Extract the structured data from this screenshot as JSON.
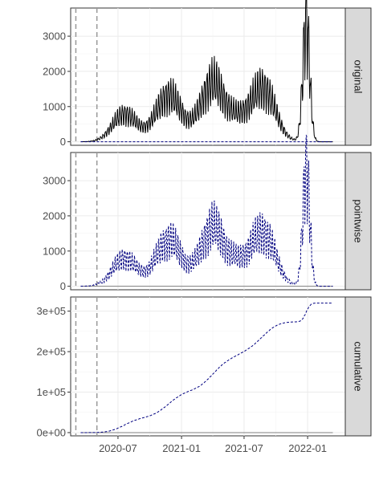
{
  "chart_data": {
    "type": "line",
    "title": "",
    "xlabel": "",
    "ylabel": "",
    "x_start": "2020-03-15",
    "x_end": "2022-03-15",
    "xlim": [
      "2020-02-15",
      "2022-04-20"
    ],
    "x_ticks": [
      {
        "date": "2020-07-01",
        "label": "2020-07"
      },
      {
        "date": "2021-01-01",
        "label": "2021-01"
      },
      {
        "date": "2021-07-01",
        "label": "2021-07"
      },
      {
        "date": "2022-01-01",
        "label": "2022-01"
      }
    ],
    "vertical_reference_dates": [
      "2020-03-01",
      "2020-05-01"
    ],
    "series_styles": {
      "observed": {
        "name": "observed",
        "color": "#000000",
        "dash": "solid"
      },
      "counterfactual": {
        "name": "counterfactual / effect",
        "color": "#000080",
        "dash": "dashed"
      },
      "zero": {
        "name": "zero reference",
        "color": "#808080",
        "dash": "solid"
      }
    },
    "waves": [
      {
        "peak_date": "2020-07-20",
        "height": 780,
        "width_days": 35
      },
      {
        "peak_date": "2020-11-25",
        "height": 1300,
        "width_days": 38
      },
      {
        "peak_date": "2021-04-01",
        "height": 1650,
        "width_days": 35
      },
      {
        "peak_date": "2021-06-15",
        "height": 480,
        "width_days": 30
      },
      {
        "peak_date": "2021-08-25",
        "height": 1500,
        "width_days": 35
      },
      {
        "peak_date": "2021-12-28",
        "height": 3400,
        "width_days": 10
      }
    ],
    "weekly_oscillation": 0.35,
    "panels": [
      {
        "strip_label": "original",
        "y_ticks": [
          0,
          1000,
          2000,
          3000
        ],
        "y_tick_labels": [
          "0",
          "1000",
          "2000",
          "3000"
        ],
        "ylim": [
          -100,
          3800
        ],
        "lines": [
          "observed",
          "counterfactual_flat_zero"
        ]
      },
      {
        "strip_label": "pointwise",
        "y_ticks": [
          0,
          1000,
          2000,
          3000
        ],
        "y_tick_labels": [
          "0",
          "1000",
          "2000",
          "3000"
        ],
        "ylim": [
          -100,
          3800
        ],
        "lines": [
          "zero_reference",
          "pointwise_effect"
        ]
      },
      {
        "strip_label": "cumulative",
        "y_ticks": [
          0,
          100000,
          200000,
          300000
        ],
        "y_tick_labels": [
          "0e+00",
          "1e+05",
          "2e+05",
          "3e+05"
        ],
        "ylim": [
          -8000,
          335000
        ],
        "lines": [
          "zero_reference",
          "cumulative_effect"
        ],
        "cumulative_total": 320000
      }
    ]
  }
}
